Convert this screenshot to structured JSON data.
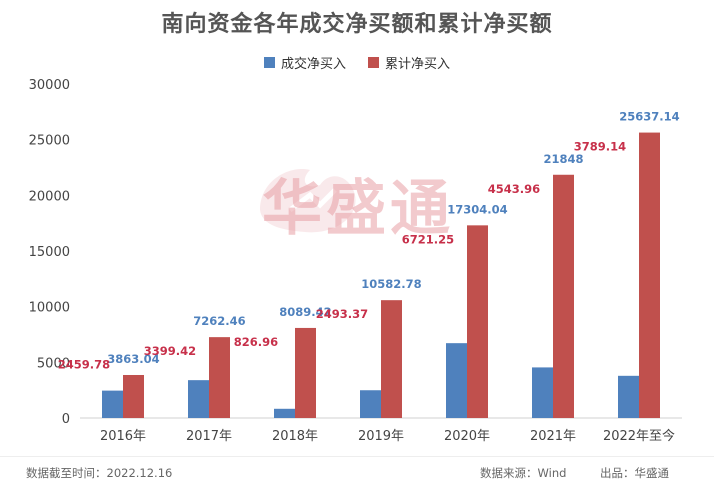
{
  "chart_data": {
    "type": "bar",
    "title": "南向资金各年成交净买额和累计净买额",
    "categories": [
      "2016年",
      "2017年",
      "2018年",
      "2019年",
      "2020年",
      "2021年",
      "2022年至今"
    ],
    "series": [
      {
        "name": "成交净买入",
        "color": "#4f81bd",
        "label_color": "#4f81bd",
        "values": [
          2459.78,
          3399.42,
          826.96,
          2493.37,
          6721.25,
          4543.96,
          3789.14
        ],
        "labels": [
          "2459.78",
          "3399.42",
          "826.96",
          "2493.37",
          "6721.25",
          "4543.96",
          "3789.14"
        ]
      },
      {
        "name": "累计净买入",
        "color": "#c0504d",
        "label_color": "#c0504d",
        "values": [
          3863.04,
          7262.46,
          8089.42,
          10582.78,
          17304.04,
          21848,
          25637.14
        ],
        "labels": [
          "3863.04",
          "7262.46",
          "8089.42",
          "10582.78",
          "17304.04",
          "21848",
          "25637.14"
        ]
      }
    ],
    "ylim": [
      0,
      30000
    ],
    "yticks": [
      0,
      5000,
      10000,
      15000,
      20000,
      25000,
      30000
    ],
    "legend_position": "top-center",
    "grid": false
  },
  "footer": {
    "date_note": "数据截至时间：2022.12.16",
    "source": "数据来源：Wind",
    "publisher": "出品：华盛通"
  },
  "watermark": {
    "text": "华盛通",
    "color": "#e8a0a6"
  }
}
